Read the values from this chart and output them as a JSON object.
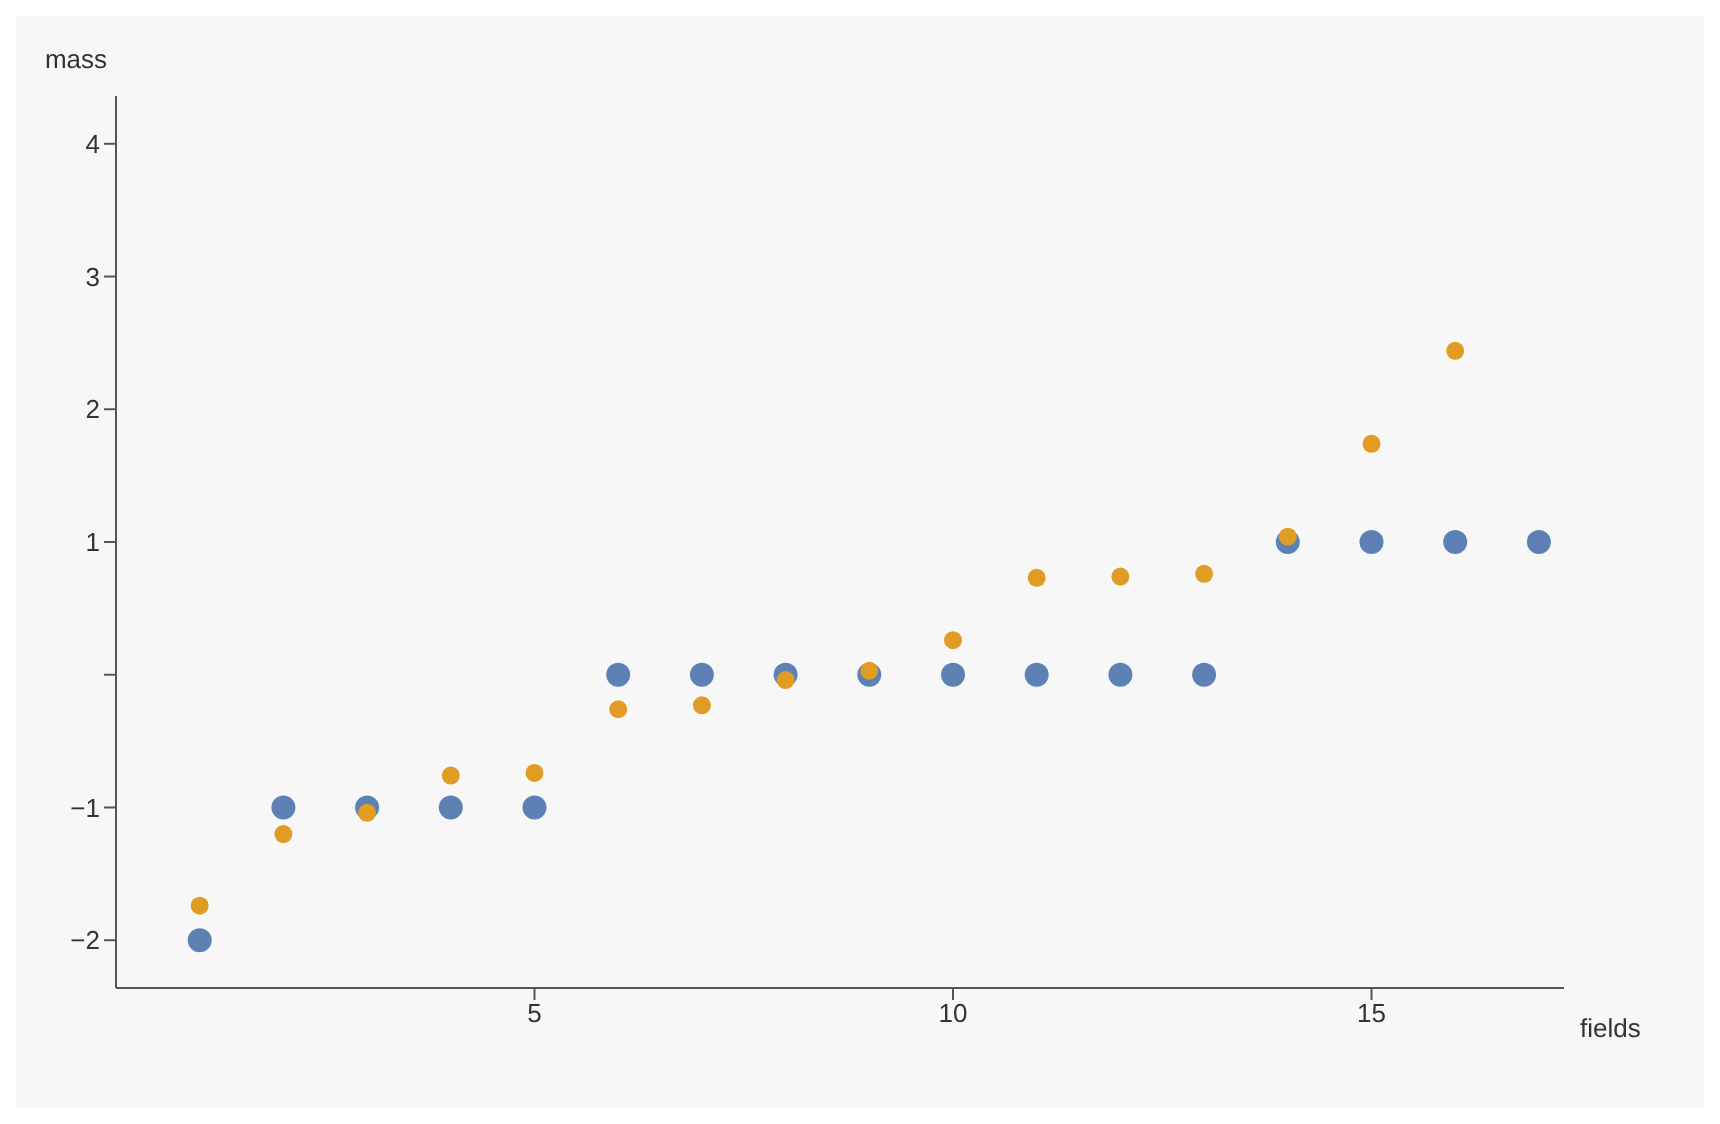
{
  "chart_data": {
    "type": "scatter",
    "xlabel": "fields",
    "ylabel": "mass",
    "x": [
      1,
      2,
      3,
      4,
      5,
      6,
      7,
      8,
      9,
      10,
      11,
      12,
      13,
      14,
      15,
      16,
      17
    ],
    "series": [
      {
        "color": "#5e81b5",
        "values": [
          -2,
          -1,
          -1,
          -1,
          -1,
          0,
          0,
          0,
          0,
          0,
          0,
          0,
          0,
          1,
          1,
          1,
          1
        ]
      },
      {
        "color": "#e19c24",
        "values": [
          -1.74,
          -1.2,
          -1.04,
          -0.76,
          -0.74,
          -0.26,
          -0.23,
          -0.04,
          0.03,
          0.26,
          0.73,
          0.74,
          0.76,
          1.04,
          1.74,
          2.44,
          null
        ]
      }
    ],
    "xlim": [
      0,
      17.3
    ],
    "xticks": [
      5,
      10,
      15
    ],
    "ylim": [
      -2.36,
      4.36
    ],
    "yticks": [
      -2,
      -1,
      {
        "value": 0,
        "label": null
      },
      1,
      2,
      3,
      4
    ],
    "marker": "circle",
    "grid": false,
    "legend": false
  }
}
